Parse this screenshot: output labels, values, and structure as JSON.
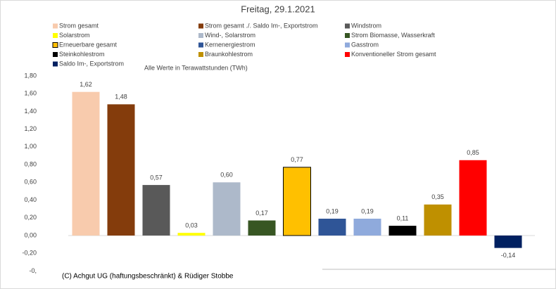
{
  "chart_data": {
    "type": "bar",
    "title": "Freitag, 29.1.2021",
    "subtitle": "Alle Werte in Terawattstunden (TWh)",
    "annotation": "(C) Achgut UG (haftungsbeschränkt) & Rüdiger Stobbe",
    "categories": [
      "Strom gesamt",
      "Strom gesamt ./. Saldo Im-, Exportstrom",
      "Windstrom",
      "Solarstrom",
      "Wind-, Solarstrom",
      "Strom Biomasse, Wasserkraft",
      "Erneuerbare gesamt",
      "Kernenergiestrom",
      "Gasstrom",
      "Steinkohlestrom",
      "Braunkohlestrom",
      "Konventioneller Strom gesamt",
      "Saldo Im-, Exportstrom"
    ],
    "values": [
      1.62,
      1.48,
      0.57,
      0.03,
      0.6,
      0.17,
      0.77,
      0.19,
      0.19,
      0.11,
      0.35,
      0.85,
      -0.14
    ],
    "value_labels": [
      "1,62",
      "1,48",
      "0,57",
      "0,03",
      "0,60",
      "0,17",
      "0,77",
      "0,19",
      "0,19",
      "0,11",
      "0,35",
      "0,85",
      "-0,14"
    ],
    "colors": [
      "#f8cbad",
      "#843c0c",
      "#595959",
      "#ffff00",
      "#adb9ca",
      "#375623",
      "#ffc000",
      "#2f5597",
      "#8faadc",
      "#000000",
      "#bf9000",
      "#ff0000",
      "#002060"
    ],
    "edgecolors": [
      null,
      null,
      null,
      null,
      null,
      null,
      "#000000",
      null,
      null,
      null,
      null,
      null,
      null
    ],
    "ylim": [
      -0.4,
      1.8
    ],
    "yticks": [
      {
        "value": 1.8,
        "label": "1,80"
      },
      {
        "value": 1.6,
        "label": "1,60"
      },
      {
        "value": 1.4,
        "label": "1,40"
      },
      {
        "value": 1.2,
        "label": "1,20"
      },
      {
        "value": 1.0,
        "label": "1,00"
      },
      {
        "value": 0.8,
        "label": "0,80"
      },
      {
        "value": 0.6,
        "label": "0,60"
      },
      {
        "value": 0.4,
        "label": "0,40"
      },
      {
        "value": 0.2,
        "label": "0,20"
      },
      {
        "value": 0,
        "label": "0,00"
      },
      {
        "value": -0.2,
        "label": "-0,20"
      },
      {
        "value": -0.4,
        "label": "-0,"
      }
    ],
    "grid": false,
    "legend": "top"
  }
}
